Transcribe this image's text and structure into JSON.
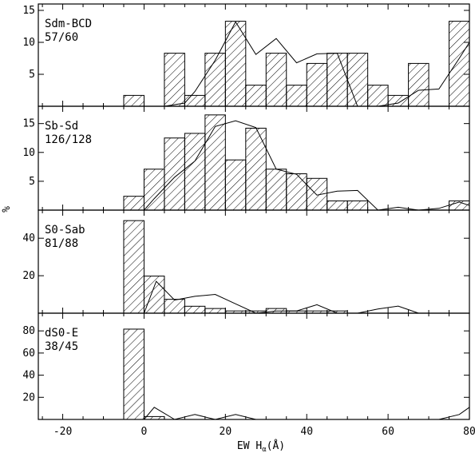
{
  "chart_data": [
    {
      "type": "bar",
      "label": "Sdm-BCD",
      "count": "57/60",
      "ylim": [
        0,
        16
      ],
      "yticks": [
        5,
        10,
        15
      ],
      "bin_edges": [
        -5,
        0,
        5,
        10,
        15,
        20,
        25,
        30,
        35,
        40,
        45,
        50,
        55,
        60,
        65,
        70,
        75,
        80
      ],
      "hist": [
        1.7,
        0,
        8.3,
        1.7,
        8.3,
        13.3,
        3.3,
        8.3,
        3.3,
        6.7,
        8.3,
        8.3,
        3.3,
        1.7,
        6.7,
        0,
        13.3
      ],
      "line": {
        "x": [
          0,
          5,
          10,
          12.5,
          17.5,
          22.5,
          27.5,
          32.5,
          37.5,
          42.5,
          47.5,
          52.5,
          57.5,
          62.5,
          67.5,
          72.5,
          77.5,
          80
        ],
        "y": [
          0,
          0,
          0.5,
          2.3,
          7.2,
          13.2,
          8.1,
          10.6,
          6.8,
          8.2,
          8.3,
          0,
          0,
          0.5,
          2.5,
          2.7,
          7.5,
          10.0
        ]
      }
    },
    {
      "type": "bar",
      "label": "Sb-Sd",
      "count": "126/128",
      "ylim": [
        0,
        18
      ],
      "yticks": [
        5,
        10,
        15
      ],
      "bin_edges": [
        -5,
        0,
        5,
        10,
        15,
        20,
        25,
        30,
        35,
        40,
        45,
        50,
        55,
        60,
        65,
        70,
        75,
        80
      ],
      "hist": [
        2.4,
        7.1,
        12.5,
        13.3,
        16.5,
        8.7,
        14.2,
        7.1,
        6.3,
        5.5,
        1.6,
        1.6,
        0,
        0,
        0,
        0,
        1.6
      ],
      "line": {
        "x": [
          -5,
          0,
          2.5,
          7.5,
          12.5,
          17.5,
          22.5,
          27.5,
          32.5,
          37.5,
          42.5,
          47.5,
          52.5,
          57.5,
          62.5,
          67.5,
          72.5,
          77.5,
          80
        ],
        "y": [
          0,
          0,
          2.0,
          5.7,
          8.5,
          14.5,
          15.5,
          14.3,
          7.1,
          6.2,
          2.6,
          3.3,
          3.4,
          0,
          0.5,
          0,
          0.3,
          1.4,
          0.8
        ]
      }
    },
    {
      "type": "bar",
      "label": "S0-Sab",
      "count": "81/88",
      "ylim": [
        0,
        55
      ],
      "yticks": [
        20,
        40
      ],
      "bin_edges": [
        -5,
        0,
        5,
        10,
        15,
        20,
        25,
        30,
        35,
        40,
        45,
        50,
        55,
        60,
        65,
        70,
        75,
        80
      ],
      "hist": [
        49.4,
        19.8,
        7.4,
        3.7,
        2.5,
        1.2,
        1.2,
        2.5,
        1.2,
        1.2,
        1.2,
        0,
        0,
        0,
        0,
        0,
        0
      ],
      "line": {
        "x": [
          -5,
          0,
          3,
          7.5,
          12.5,
          17.5,
          22.5,
          27.5,
          32.5,
          37.5,
          42.5,
          47.5,
          52.5,
          57.5,
          62.5,
          67.5,
          72.5,
          77.5,
          80
        ],
        "y": [
          0,
          0,
          17.0,
          7.0,
          9.0,
          10.0,
          5.0,
          0,
          1.2,
          1.2,
          4.5,
          0,
          0,
          2.2,
          3.8,
          0,
          0,
          0,
          0
        ]
      }
    },
    {
      "type": "bar",
      "label": "dS0-E",
      "count": "38/45",
      "ylim": [
        0,
        96
      ],
      "yticks": [
        20,
        40,
        60,
        80
      ],
      "bin_edges": [
        -5,
        0,
        5,
        10,
        15,
        20,
        25,
        30,
        35,
        40,
        45,
        50,
        55,
        60,
        65,
        70,
        75,
        80
      ],
      "hist": [
        81.6,
        2.6,
        0,
        0,
        0,
        0,
        0,
        0,
        0,
        0,
        0,
        0,
        0,
        0,
        0,
        0,
        0
      ],
      "line": {
        "x": [
          -5,
          0,
          2.5,
          7.5,
          12.5,
          17.5,
          22.5,
          27.5,
          32.5,
          37.5,
          42.5,
          47.5,
          52.5,
          57.5,
          62.5,
          67.5,
          72.5,
          77.5,
          80
        ],
        "y": [
          0,
          0,
          11.0,
          0,
          4.5,
          0,
          4.5,
          0,
          0,
          0,
          0,
          0,
          0,
          0,
          0,
          0,
          0,
          4.5,
          11.0
        ]
      }
    }
  ],
  "x_axis": {
    "xlim": [
      -26,
      80
    ],
    "ticks": [
      -20,
      0,
      20,
      40,
      60,
      80
    ],
    "label": "EW Hα(Å)"
  },
  "y_axis": {
    "label": "%"
  }
}
